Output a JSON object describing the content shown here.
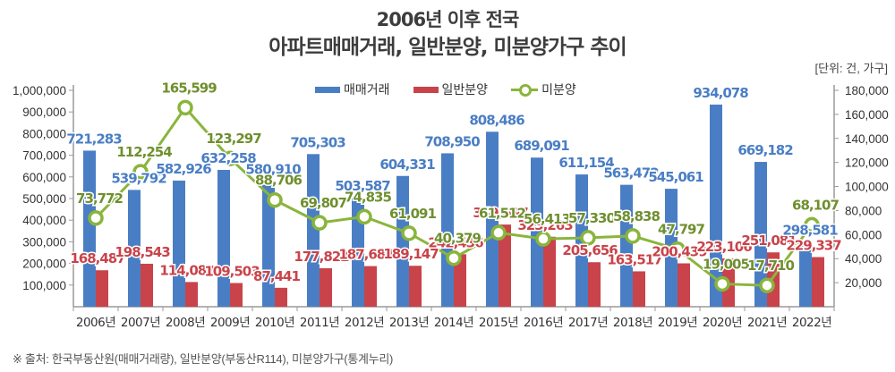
{
  "header": {
    "title_line1": "2006년 이후 전국",
    "title_line2": "아파트매매거래, 일반분양, 미분양가구 추이",
    "unit": "[단위: 건, 가구]"
  },
  "footer": {
    "source": "※ 출처: 한국부동산원(매매거래량), 일반분양(부동산R114), 미분양가구(통계누리)"
  },
  "colors": {
    "sales": "#4a7ec4",
    "presale": "#c9434a",
    "unsold": "#8ab53c",
    "sales_label": "#4a7ec4",
    "presale_label": "#c9434a",
    "unsold_label": "#6f8f2e",
    "axis": "#9a9a9a",
    "axis_text": "#333333"
  },
  "chart_data": {
    "type": "bar",
    "title": "2006년 이후 전국 아파트매매거래, 일반분양, 미분양가구 추이",
    "categories": [
      "2006년",
      "2007년",
      "2008년",
      "2009년",
      "2010년",
      "2011년",
      "2012년",
      "2013년",
      "2014년",
      "2015년",
      "2016년",
      "2017년",
      "2018년",
      "2019년",
      "2020년",
      "2021년",
      "2022년"
    ],
    "series": [
      {
        "name": "매매거래",
        "type": "bar",
        "axis": "left",
        "values": [
          721283,
          539792,
          582926,
          632258,
          580910,
          705303,
          503587,
          604331,
          708950,
          808486,
          689091,
          611154,
          563472,
          545061,
          934078,
          669182,
          298581
        ],
        "labels": [
          "721,283",
          "539,792",
          "582,926",
          "632,258",
          "580,910",
          "705,303",
          "503,587",
          "604,331",
          "708,950",
          "808,486",
          "689,091",
          "611,154",
          "563,472",
          "545,061",
          "934,078",
          "669,182",
          "298,581"
        ]
      },
      {
        "name": "일반분양",
        "type": "bar",
        "axis": "left",
        "values": [
          168487,
          198543,
          114089,
          109503,
          87441,
          177822,
          187683,
          189147,
          242436,
          379697,
          323263,
          205656,
          163517,
          200439,
          223106,
          251081,
          229337
        ],
        "labels": [
          "168,487",
          "198,543",
          "114,089",
          "109,503",
          "87,441",
          "177,822",
          "187,683",
          "189,147",
          "242,436",
          "379,697",
          "323,263",
          "205,656",
          "163,517",
          "200,439",
          "223,106",
          "251,081",
          "229,337"
        ]
      },
      {
        "name": "미분양",
        "type": "line",
        "axis": "right",
        "values": [
          73772,
          112254,
          165599,
          123297,
          88706,
          69807,
          74835,
          61091,
          40379,
          61512,
          56413,
          57330,
          58838,
          47797,
          19005,
          17710,
          68107
        ],
        "labels": [
          "73,772",
          "112,254",
          "165,599",
          "123,297",
          "88,706",
          "69,807",
          "74,835",
          "61,091",
          "40,379",
          "61,512",
          "56,413",
          "57,330",
          "58,838",
          "47,797",
          "19,005",
          "17,710",
          "68,107"
        ]
      }
    ],
    "left_axis": {
      "ylim": [
        0,
        1000000
      ],
      "ticks": [
        "100,000",
        "200,000",
        "300,000",
        "400,000",
        "500,000",
        "600,000",
        "700,000",
        "800,000",
        "900,000",
        "1,000,000"
      ],
      "tick_values": [
        100000,
        200000,
        300000,
        400000,
        500000,
        600000,
        700000,
        800000,
        900000,
        1000000
      ]
    },
    "right_axis": {
      "ylim": [
        0,
        180000
      ],
      "ticks": [
        "20,000",
        "40,000",
        "60,000",
        "80,000",
        "100,000",
        "120,000",
        "140,000",
        "160,000",
        "180,000"
      ],
      "tick_values": [
        20000,
        40000,
        60000,
        80000,
        100000,
        120000,
        140000,
        160000,
        180000
      ]
    },
    "legend": {
      "placement": "top-center",
      "entries": [
        "매매거래",
        "일반분양",
        "미분양"
      ]
    },
    "grid": false,
    "xlabel": "",
    "ylabel": ""
  }
}
